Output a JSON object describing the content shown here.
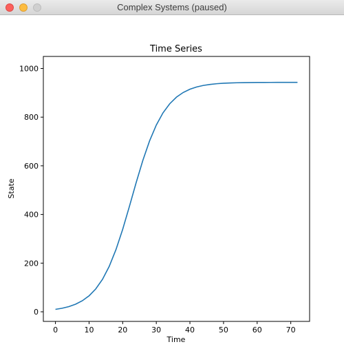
{
  "window": {
    "title": "Complex Systems (paused)",
    "buttons": [
      "close",
      "minimize",
      "zoom"
    ]
  },
  "chart_data": {
    "type": "line",
    "title": "Time Series",
    "xlabel": "Time",
    "ylabel": "State",
    "xlim": [
      -3.6,
      75.6
    ],
    "ylim": [
      -39.5,
      1049.5
    ],
    "xticks": [
      0,
      10,
      20,
      30,
      40,
      50,
      60,
      70
    ],
    "yticks": [
      0,
      200,
      400,
      600,
      800,
      1000
    ],
    "grid": false,
    "line_color": "#1f77b4",
    "series": [
      {
        "x": [
          0,
          2,
          4,
          6,
          8,
          10,
          12,
          14,
          16,
          18,
          20,
          22,
          24,
          26,
          28,
          30,
          32,
          34,
          36,
          38,
          40,
          42,
          44,
          46,
          48,
          50,
          52,
          54,
          56,
          58,
          60,
          62,
          64,
          66,
          68,
          70,
          72
        ],
        "values": [
          10,
          14.6,
          21.4,
          31.2,
          45.4,
          65.6,
          94.1,
          133.5,
          186.8,
          255.5,
          338.9,
          433.1,
          530.4,
          622.4,
          702.4,
          767.4,
          817.8,
          855.1,
          882.2,
          901.3,
          914.8,
          924.0,
          930.3,
          934.5,
          937.4,
          939.3,
          940.5,
          941.3,
          941.9,
          942.2,
          942.4,
          942.6,
          942.7,
          942.8,
          942.8,
          942.8,
          942.8
        ]
      }
    ]
  }
}
